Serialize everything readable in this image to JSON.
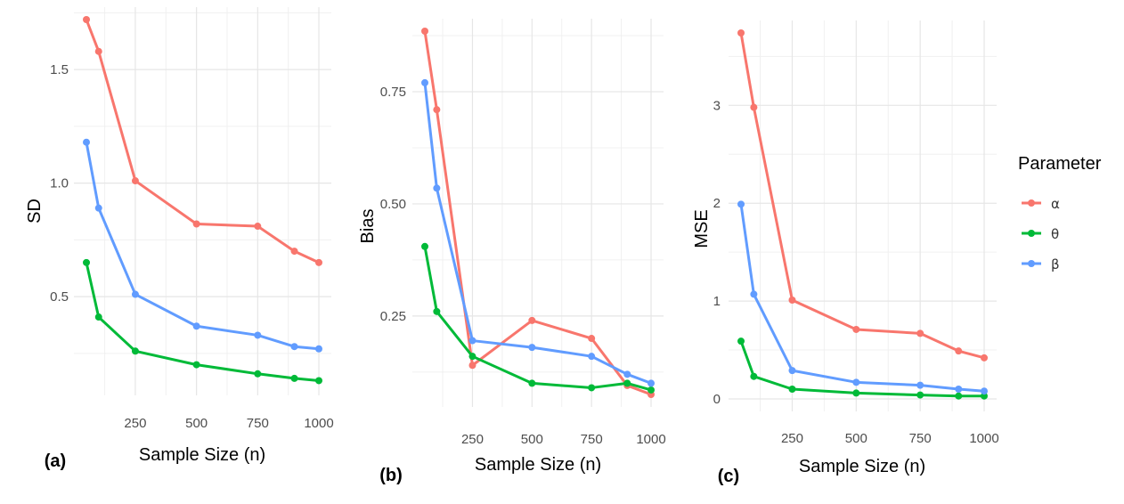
{
  "legend": {
    "title": "Parameter",
    "items": [
      {
        "label": "α",
        "color": "#F8766D"
      },
      {
        "label": "θ",
        "color": "#00BA38"
      },
      {
        "label": "β",
        "color": "#619CFF"
      }
    ]
  },
  "chart_data": [
    {
      "type": "line",
      "panel_label": "(a)",
      "xlabel": "Sample Size (n)",
      "ylabel": "SD",
      "xlim": [
        50,
        1000
      ],
      "ylim": [
        0.12,
        1.72
      ],
      "xticks": [
        250,
        500,
        750,
        1000
      ],
      "yticks": [
        0.5,
        1.0,
        1.5
      ],
      "ytick_labels": [
        "0.5",
        "1.0",
        "1.5"
      ],
      "grid": true,
      "x": [
        50,
        100,
        250,
        500,
        750,
        900,
        1000
      ],
      "series": [
        {
          "name": "α",
          "color": "#F8766D",
          "values": [
            1.72,
            1.58,
            1.01,
            0.82,
            0.81,
            0.7,
            0.65
          ]
        },
        {
          "name": "θ",
          "color": "#00BA38",
          "values": [
            0.65,
            0.41,
            0.26,
            0.2,
            0.16,
            0.14,
            0.13
          ]
        },
        {
          "name": "β",
          "color": "#619CFF",
          "values": [
            1.18,
            0.89,
            0.51,
            0.37,
            0.33,
            0.28,
            0.27
          ]
        }
      ]
    },
    {
      "type": "line",
      "panel_label": "(b)",
      "xlabel": "Sample Size (n)",
      "ylabel": "Bias",
      "xlim": [
        50,
        1000
      ],
      "ylim": [
        0.075,
        0.885
      ],
      "xticks": [
        250,
        500,
        750,
        1000
      ],
      "yticks": [
        0.25,
        0.5,
        0.75
      ],
      "ytick_labels": [
        "0.25",
        "0.50",
        "0.75"
      ],
      "grid": true,
      "x": [
        50,
        100,
        250,
        500,
        750,
        900,
        1000
      ],
      "series": [
        {
          "name": "α",
          "color": "#F8766D",
          "values": [
            0.885,
            0.71,
            0.14,
            0.24,
            0.2,
            0.095,
            0.075
          ]
        },
        {
          "name": "θ",
          "color": "#00BA38",
          "values": [
            0.405,
            0.26,
            0.16,
            0.1,
            0.09,
            0.1,
            0.085
          ]
        },
        {
          "name": "β",
          "color": "#619CFF",
          "values": [
            0.77,
            0.535,
            0.195,
            0.18,
            0.16,
            0.12,
            0.1
          ]
        }
      ]
    },
    {
      "type": "line",
      "panel_label": "(c)",
      "xlabel": "Sample Size (n)",
      "ylabel": "MSE",
      "xlim": [
        50,
        1000
      ],
      "ylim": [
        0.0,
        3.74
      ],
      "xticks": [
        250,
        500,
        750,
        1000
      ],
      "yticks": [
        0,
        1,
        2,
        3
      ],
      "ytick_labels": [
        "0",
        "1",
        "2",
        "3"
      ],
      "grid": true,
      "x": [
        50,
        100,
        250,
        500,
        750,
        900,
        1000
      ],
      "series": [
        {
          "name": "α",
          "color": "#F8766D",
          "values": [
            3.74,
            2.98,
            1.01,
            0.71,
            0.67,
            0.49,
            0.42
          ]
        },
        {
          "name": "θ",
          "color": "#00BA38",
          "values": [
            0.59,
            0.23,
            0.1,
            0.06,
            0.04,
            0.03,
            0.03
          ]
        },
        {
          "name": "β",
          "color": "#619CFF",
          "values": [
            1.99,
            1.07,
            0.29,
            0.17,
            0.14,
            0.1,
            0.08
          ]
        }
      ]
    }
  ]
}
